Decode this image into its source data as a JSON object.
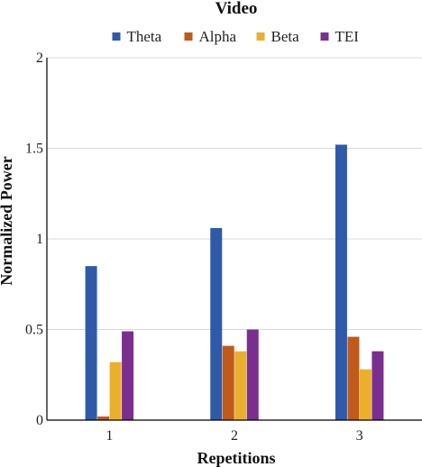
{
  "chart_data": {
    "type": "bar",
    "title": "Video",
    "xlabel": "Repetitions",
    "ylabel": "Normalized Power",
    "categories": [
      "1",
      "2",
      "3"
    ],
    "y_ticks": [
      "0",
      "0.5",
      "1",
      "1.5",
      "2"
    ],
    "ylim": [
      0,
      2
    ],
    "grid": true,
    "legend_position": "top",
    "series": [
      {
        "name": "Theta",
        "color": "#2f5aa8",
        "values": [
          0.85,
          1.06,
          1.52
        ]
      },
      {
        "name": "Alpha",
        "color": "#c05a1b",
        "values": [
          0.02,
          0.41,
          0.46
        ]
      },
      {
        "name": "Beta",
        "color": "#eab02d",
        "values": [
          0.32,
          0.38,
          0.28
        ]
      },
      {
        "name": "TEI",
        "color": "#7a2e8e",
        "values": [
          0.49,
          0.5,
          0.38
        ]
      }
    ]
  }
}
